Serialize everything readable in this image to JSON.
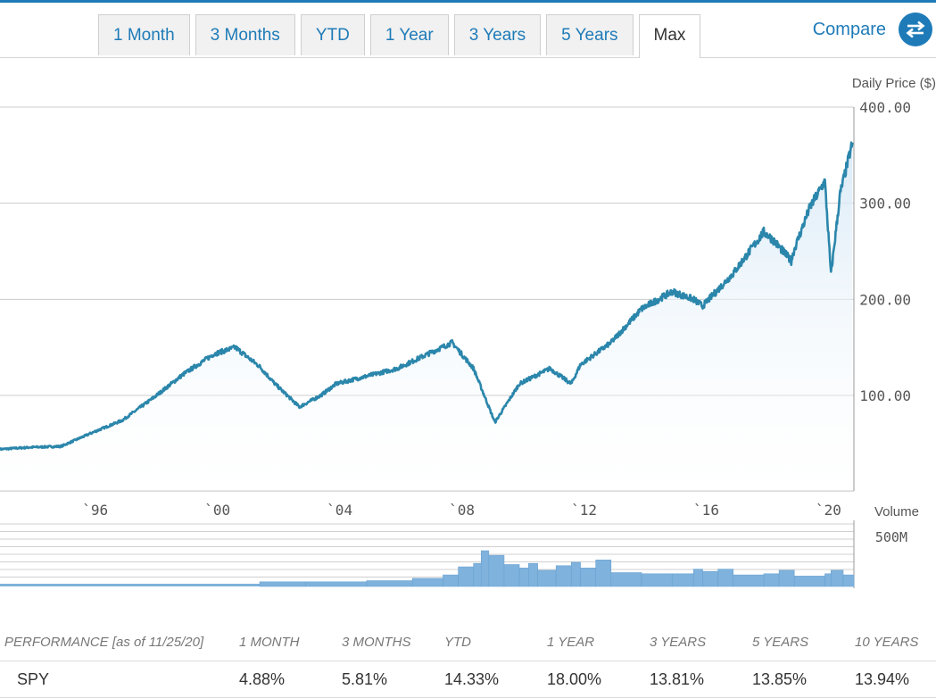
{
  "colors": {
    "accent": "#1e7bb8",
    "line": "#2b86ab",
    "area_top": "#d6e8f6",
    "volume": "#7fb2dc",
    "grid": "#cccccc"
  },
  "tabs": [
    {
      "label": "1 Month"
    },
    {
      "label": "3 Months"
    },
    {
      "label": "YTD"
    },
    {
      "label": "1 Year"
    },
    {
      "label": "3 Years"
    },
    {
      "label": "5 Years"
    },
    {
      "label": "Max",
      "active": true
    }
  ],
  "compare": {
    "label": "Compare",
    "icon": "swap-arrows-icon"
  },
  "chart_data": [
    {
      "type": "line",
      "ylabel": "Daily Price ($)",
      "ylim": [
        0,
        400
      ],
      "yticks": [
        "100.00",
        "200.00",
        "300.00",
        "400.00"
      ],
      "xticks": [
        "`96",
        "`00",
        "`04",
        "`08",
        "`12",
        "`16",
        "`20"
      ],
      "grid": true,
      "fill": "area",
      "series": [
        {
          "x": [
            1993.0,
            1994.0,
            1995.0,
            1996.0,
            1997.0,
            1998.0,
            1999.0,
            2000.0,
            2000.7,
            2001.5,
            2002.0,
            2002.8,
            2003.5,
            2004.0,
            2005.0,
            2006.0,
            2007.0,
            2007.8,
            2008.5,
            2009.0,
            2009.2,
            2010.0,
            2011.0,
            2011.7,
            2012.0,
            2013.0,
            2014.0,
            2015.0,
            2015.7,
            2016.0,
            2016.5,
            2017.0,
            2018.0,
            2018.3,
            2018.9,
            2019.0,
            2019.5,
            2020.0,
            2020.2,
            2020.5,
            2020.9
          ],
          "y": [
            44,
            46,
            47,
            61,
            74,
            97,
            122,
            143,
            150,
            130,
            112,
            88,
            100,
            112,
            120,
            128,
            143,
            155,
            128,
            88,
            72,
            112,
            128,
            112,
            132,
            155,
            190,
            208,
            200,
            193,
            210,
            227,
            270,
            262,
            240,
            252,
            295,
            323,
            226,
            310,
            363
          ]
        }
      ]
    },
    {
      "type": "bar",
      "ylabel": "Volume",
      "yticks": [
        "500M"
      ],
      "x": [
        2001.5,
        2003.0,
        2005.0,
        2006.5,
        2007.5,
        2008.0,
        2008.5,
        2008.75,
        2009.0,
        2009.5,
        2010.0,
        2010.3,
        2010.6,
        2011.2,
        2011.7,
        2012.0,
        2012.5,
        2013.0,
        2014.0,
        2015.0,
        2015.7,
        2016.0,
        2016.5,
        2017.0,
        2018.0,
        2018.5,
        2019.0,
        2020.0,
        2020.2,
        2020.6
      ],
      "values": [
        40,
        40,
        50,
        70,
        100,
        170,
        200,
        310,
        270,
        190,
        160,
        200,
        140,
        180,
        210,
        160,
        230,
        120,
        110,
        110,
        150,
        130,
        150,
        100,
        110,
        140,
        90,
        110,
        140,
        100
      ]
    }
  ],
  "performance": {
    "header": {
      "label": "PERFORMANCE [as of 11/25/20]",
      "cols": [
        "1 MONTH",
        "3 MONTHS",
        "YTD",
        "1 YEAR",
        "3 YEARS",
        "5 YEARS",
        "10 YEARS"
      ]
    },
    "rows": [
      {
        "ticker": "SPY",
        "values": [
          "4.88%",
          "5.81%",
          "14.33%",
          "18.00%",
          "13.81%",
          "13.85%",
          "13.94%"
        ]
      }
    ]
  }
}
